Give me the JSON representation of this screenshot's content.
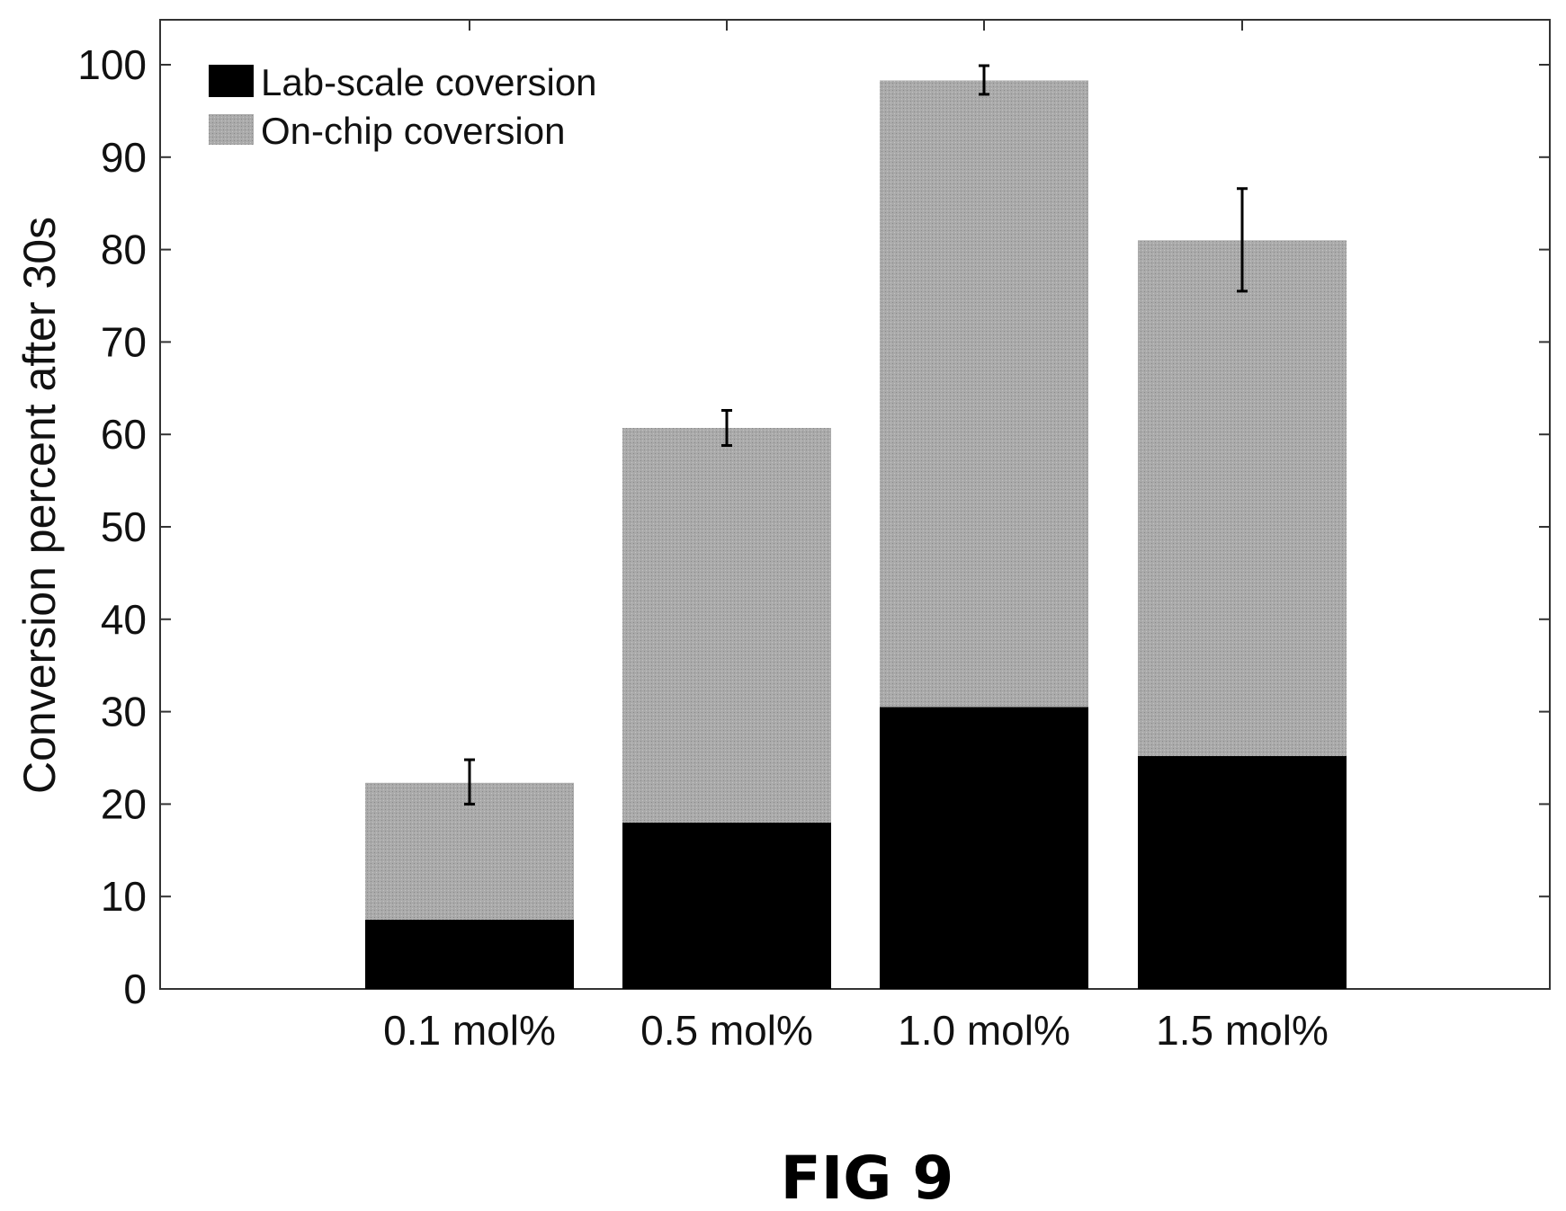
{
  "chart_data": {
    "type": "bar",
    "stacked": true,
    "categories": [
      "0.1 mol%",
      "0.5 mol%",
      "1.0 mol%",
      "1.5 mol%"
    ],
    "series": [
      {
        "name": "Lab-scale coversion",
        "values": [
          7.5,
          18,
          30.5,
          25.2
        ],
        "color": "#000000"
      },
      {
        "name": "On-chip coversion",
        "values": [
          14.8,
          42.7,
          67.8,
          55.8
        ],
        "color": "#a8a8a8"
      }
    ],
    "totals": [
      22.3,
      60.7,
      98.3,
      81.0
    ],
    "error_bars": [
      {
        "low": 20,
        "high": 24.8
      },
      {
        "low": 58.8,
        "high": 62.6
      },
      {
        "low": 96.8,
        "high": 99.9
      },
      {
        "low": 75.5,
        "high": 86.6
      }
    ],
    "title": "",
    "xlabel": "",
    "ylabel": "Conversion percent after 30s",
    "ylim": [
      0,
      100
    ],
    "yticks": [
      0,
      10,
      20,
      30,
      40,
      50,
      60,
      70,
      80,
      90,
      100
    ],
    "grid": false,
    "legend_position": "top-left"
  },
  "figure_label": "FIG 9"
}
